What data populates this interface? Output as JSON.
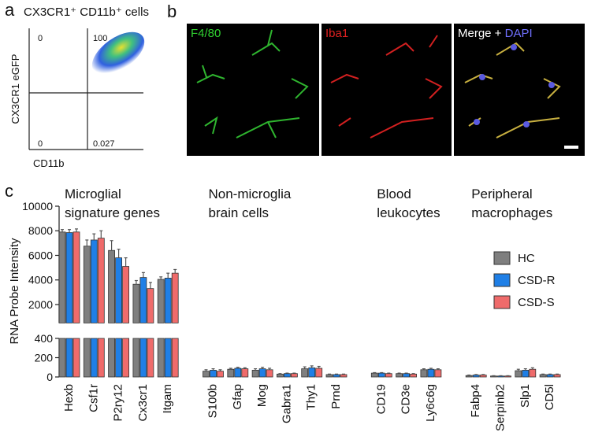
{
  "panel_a": {
    "letter": "a",
    "title": "CX3CR1⁺ CD11b⁺ cells",
    "y_label": "CX3CR1 eGFP",
    "x_label": "CD11b",
    "quadrants": {
      "upper_left": "0",
      "upper_right": "100",
      "lower_left": "0",
      "lower_right": "0.027"
    }
  },
  "panel_b": {
    "letter": "b",
    "labels": [
      "F4/80",
      "Iba1"
    ],
    "merge_label": "Merge + ",
    "dapi_label": "DAPI"
  },
  "chart_data": {
    "type": "bar",
    "letter": "c",
    "y_label": "RNA Probe Intensity",
    "y_segments": [
      {
        "ylim": [
          0,
          400
        ],
        "yticks": [
          0,
          200,
          400
        ]
      },
      {
        "ylim": [
          500,
          10000
        ],
        "yticks": [
          2000,
          4000,
          6000,
          8000,
          10000
        ]
      }
    ],
    "groups": [
      {
        "label_lines": [
          "Microglial",
          "signature genes"
        ],
        "categories": [
          "Hexb",
          "Csf1r",
          "P2ry12",
          "Cx3cr1",
          "Itgam"
        ]
      },
      {
        "label_lines": [
          "Non-microglia",
          "brain cells"
        ],
        "categories": [
          "S100b",
          "Gfap",
          "Mog",
          "Gabra1",
          "Thy1",
          "Prnd"
        ]
      },
      {
        "label_lines": [
          "Blood",
          "leukocytes"
        ],
        "categories": [
          "CD19",
          "CD3e",
          "Ly6c6g"
        ]
      },
      {
        "label_lines": [
          "Peripheral",
          "macrophages"
        ],
        "categories": [
          "Fabp4",
          "Serpinb2",
          "Slp1",
          "CD5l"
        ]
      }
    ],
    "series": [
      {
        "name": "HC",
        "color": "#7f7f7f",
        "values": [
          7900,
          6750,
          6400,
          3650,
          4050,
          60,
          80,
          70,
          30,
          85,
          25,
          40,
          35,
          75,
          15,
          10,
          65,
          25
        ],
        "errors": [
          200,
          500,
          800,
          300,
          200,
          15,
          10,
          15,
          5,
          20,
          5,
          5,
          5,
          10,
          5,
          3,
          15,
          5
        ]
      },
      {
        "name": "CSD-R",
        "color": "#1f7fe6",
        "values": [
          7850,
          7250,
          5800,
          4200,
          4150,
          70,
          90,
          85,
          35,
          95,
          25,
          40,
          35,
          80,
          20,
          10,
          70,
          25
        ],
        "errors": [
          250,
          500,
          700,
          400,
          400,
          15,
          10,
          15,
          5,
          20,
          5,
          5,
          5,
          10,
          5,
          3,
          15,
          5
        ]
      },
      {
        "name": "CSD-S",
        "color": "#ef6b6b",
        "values": [
          7900,
          7400,
          5100,
          3300,
          4550,
          60,
          85,
          75,
          35,
          90,
          25,
          35,
          30,
          75,
          20,
          10,
          80,
          25
        ],
        "errors": [
          250,
          600,
          700,
          500,
          300,
          15,
          10,
          15,
          5,
          20,
          5,
          5,
          5,
          10,
          5,
          3,
          15,
          5
        ]
      }
    ]
  }
}
